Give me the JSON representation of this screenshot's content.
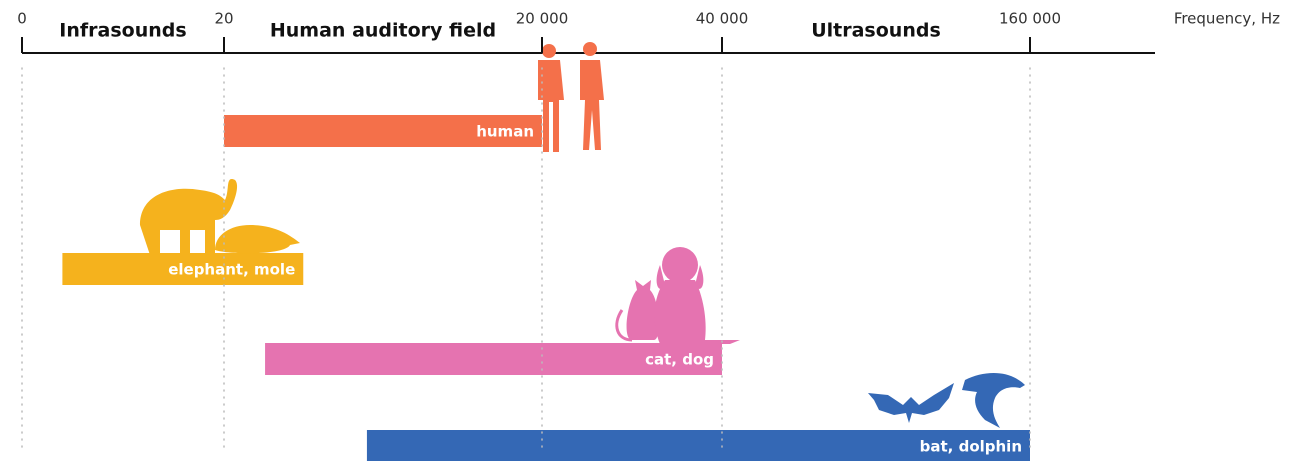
{
  "chart_data": {
    "type": "range_bar",
    "x_label": "Frequency, Hz",
    "xticks": [
      0,
      20,
      {
        "value": 20000,
        "label": "20 000"
      },
      {
        "value": 40000,
        "label": "40 000"
      },
      {
        "value": 160000,
        "label": "160 000"
      }
    ],
    "xlim": [
      0,
      160000
    ],
    "regions": [
      {
        "label": "Infrasounds",
        "from": 0,
        "to": 20
      },
      {
        "label": "Human auditory field",
        "from": 20,
        "to": 20000
      },
      {
        "label": "Ultrasounds",
        "from": 40000,
        "to": 160000
      }
    ],
    "series": [
      {
        "name": "human",
        "color": "#f4704a",
        "start": 20,
        "end": 20000
      },
      {
        "name": "elephant, mole",
        "color": "#f5b21d",
        "start": 4,
        "end": 5000
      },
      {
        "name": "cat, dog",
        "color": "#e573b0",
        "start": 2600,
        "end": 40000
      },
      {
        "name": "bat, dolphin",
        "color": "#3468b5",
        "start": 9000,
        "end": 160000
      }
    ]
  }
}
